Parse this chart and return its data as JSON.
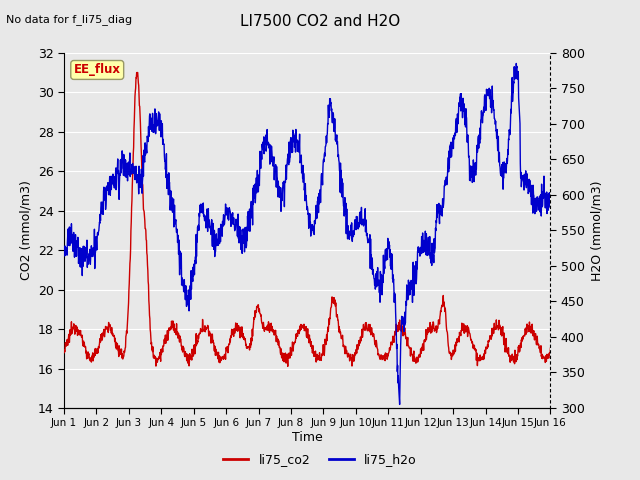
{
  "title": "LI7500 CO2 and H2O",
  "top_left_text": "No data for f_li75_diag",
  "xlabel": "Time",
  "ylabel_left": "CO2 (mmol/m3)",
  "ylabel_right": "H2O (mmol/m3)",
  "ylim_left": [
    14,
    32
  ],
  "ylim_right": [
    300,
    800
  ],
  "yticks_left": [
    14,
    16,
    18,
    20,
    22,
    24,
    26,
    28,
    30,
    32
  ],
  "yticks_right": [
    300,
    350,
    400,
    450,
    500,
    550,
    600,
    650,
    700,
    750,
    800
  ],
  "xtick_labels": [
    "Jun 1",
    "Jun 2",
    "Jun 3",
    "Jun 4",
    "Jun 5",
    "Jun 6",
    "Jun 7",
    "Jun 8",
    "Jun 9",
    "Jun 10",
    "Jun 11",
    "Jun 12",
    "Jun 13",
    "Jun 14",
    "Jun 15",
    "Jun 16"
  ],
  "co2_color": "#cc0000",
  "h2o_color": "#0000cc",
  "bg_color": "#e8e8e8",
  "plot_bg_color": "#e8e8e8",
  "grid_color": "#ffffff",
  "ee_flux_box_facecolor": "#ffffaa",
  "ee_flux_box_edgecolor": "#999966",
  "ee_flux_text_color": "#cc0000",
  "legend_co2": "li75_co2",
  "legend_h2o": "li75_h2o",
  "line_width": 1.0
}
